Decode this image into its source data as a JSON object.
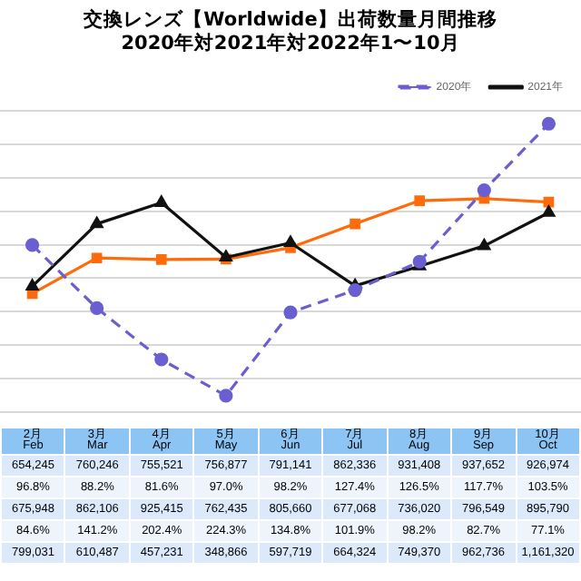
{
  "chart_data": {
    "type": "line",
    "title": "交換レンズ【Worldwide】出荷数量月間推移\n2020年対2021年対2022年1〜10月",
    "categories": [
      "2月\nFeb",
      "3月\nMar",
      "4月\nApr",
      "5月\nMay",
      "6月\nJun",
      "7月\nJul",
      "8月\nAug",
      "9月\nSep",
      "10月\nOct"
    ],
    "series": [
      {
        "name": "2020年",
        "color": "#6a5fd0",
        "line_style": "dashed",
        "marker": "circle",
        "values": [
          799031,
          610487,
          457231,
          348866,
          597719,
          664324,
          749370,
          962736,
          1161320
        ],
        "value_labels": [
          "799,031",
          "610,487",
          "457,231",
          "348,866",
          "597,719",
          "664,324",
          "749,370",
          "962,736",
          "1,161,320"
        ]
      },
      {
        "name": "2021年",
        "color": "#111111",
        "line_style": "solid",
        "marker": "triangle",
        "values": [
          675948,
          862106,
          925415,
          762435,
          805660,
          677068,
          736020,
          796549,
          895790
        ],
        "value_labels": [
          "675,948",
          "862,106",
          "925,415",
          "762,435",
          "805,660",
          "677,068",
          "736,020",
          "796,549",
          "895,790"
        ]
      },
      {
        "color": "#ff6a0a",
        "line_style": "solid",
        "marker": "square",
        "values": [
          654245,
          760246,
          755521,
          756877,
          791141,
          862336,
          931408,
          937652,
          926974
        ],
        "value_labels": [
          "654,245",
          "760,246",
          "755,521",
          "756,877",
          "791,141",
          "862,336",
          "931,408",
          "937,652",
          "926,974"
        ]
      }
    ],
    "annotations": [
      "96.8%",
      "88.2%",
      "81.6%",
      "97.0%",
      "98.2%",
      "127.4%",
      "126.5%",
      "117.7%",
      "103.5%",
      "84.6%",
      "141.2%",
      "202.4%",
      "224.3%",
      "134.8%",
      "101.9%",
      "98.2%",
      "82.7%",
      "77.1%"
    ],
    "grid": "y",
    "legend": "top right",
    "tick_labels": false
  }
}
